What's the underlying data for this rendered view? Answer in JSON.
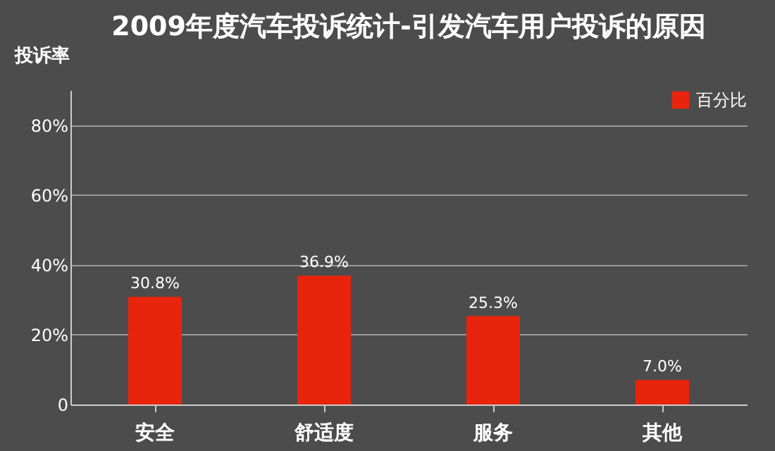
{
  "chart_data": {
    "type": "bar",
    "title": "2009年度汽车投诉统计-引发汽车用户投诉的原因",
    "ylabel": "投诉率",
    "categories": [
      "安全",
      "舒适度",
      "服务",
      "其他"
    ],
    "series": [
      {
        "name": "百分比",
        "color": "#e8240c",
        "values": [
          30.8,
          36.9,
          25.3,
          7.0
        ],
        "value_labels": [
          "30.8%",
          "36.9%",
          "25.3%",
          "7.0%"
        ]
      }
    ],
    "ylim": [
      0,
      90
    ],
    "yticks": [
      {
        "value": 0,
        "label": "0"
      },
      {
        "value": 20,
        "label": "20%"
      },
      {
        "value": 40,
        "label": "40%"
      },
      {
        "value": 60,
        "label": "60%"
      },
      {
        "value": 80,
        "label": "80%"
      }
    ],
    "grid": "y",
    "legend": "top right"
  }
}
